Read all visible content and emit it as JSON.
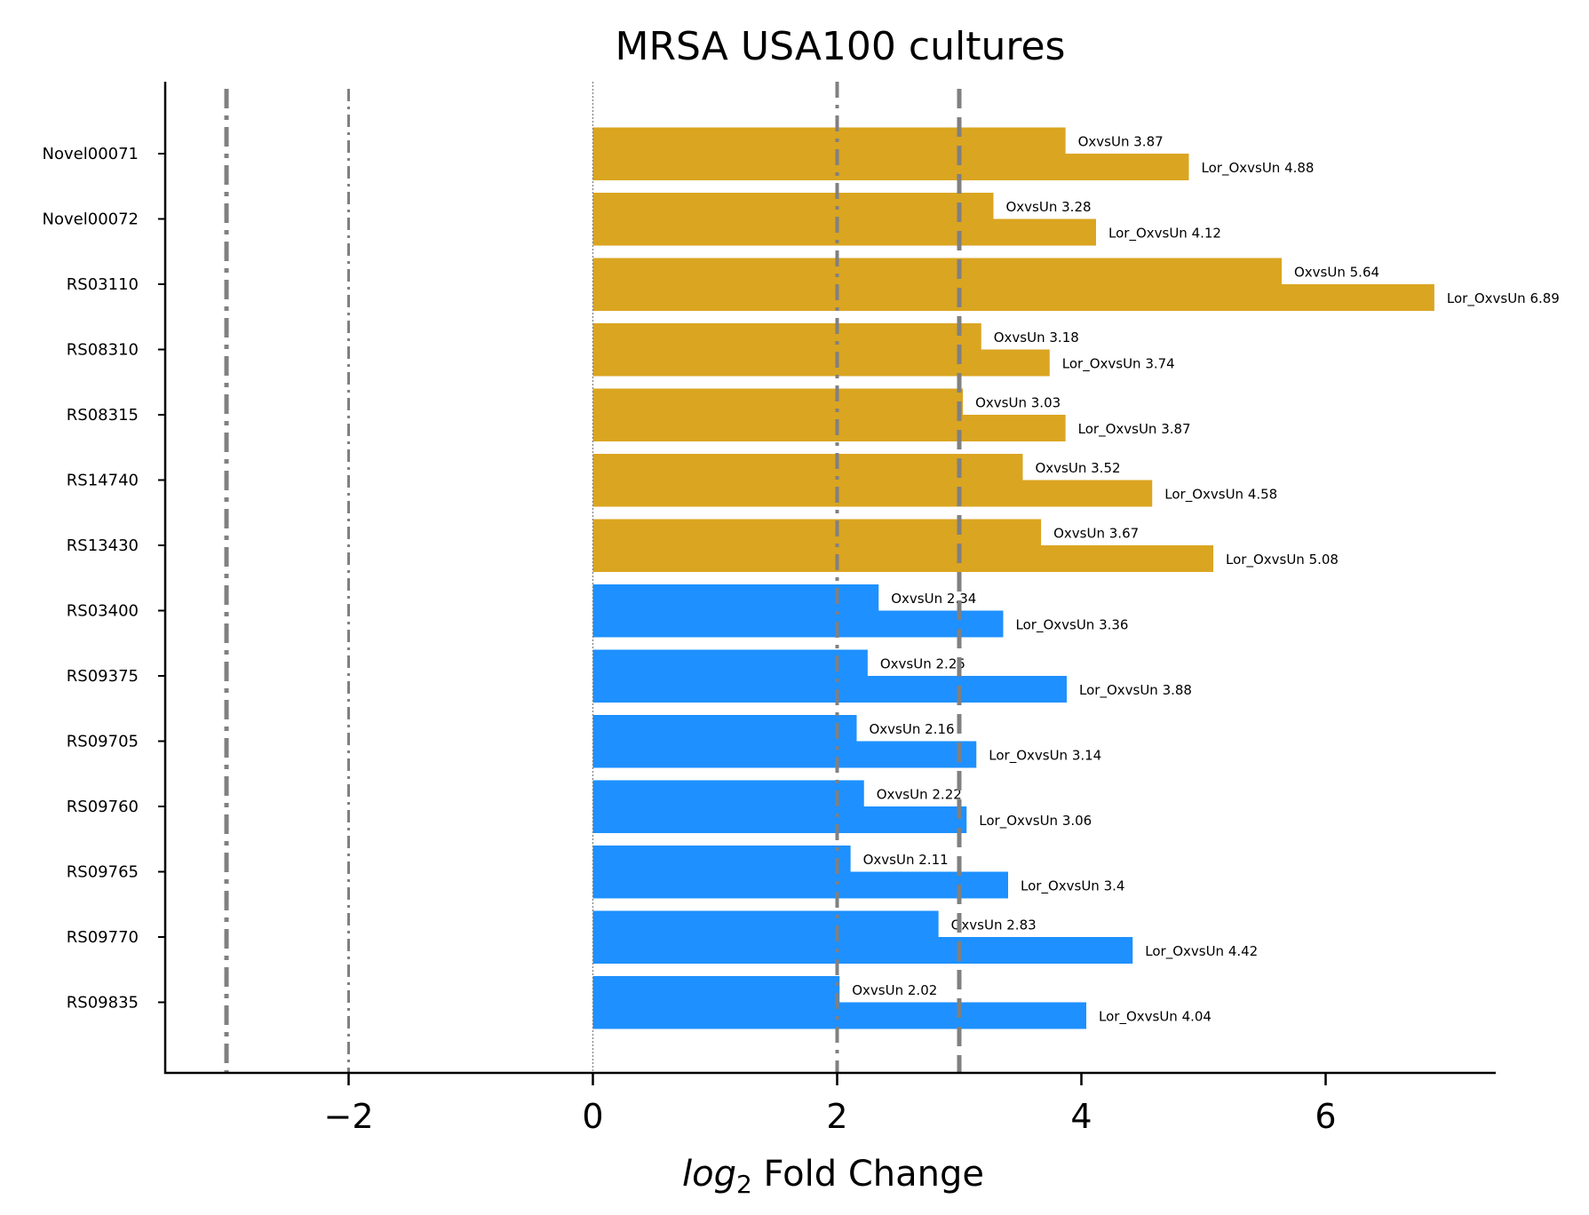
{
  "chart_data": {
    "type": "bar",
    "orientation": "horizontal",
    "title": "MRSA USA100 cultures",
    "xlabel_math": "log",
    "xlabel_sub": "2",
    "xlabel_rest": " Fold Change",
    "xlim": [
      -3.5,
      7.4
    ],
    "xticks": [
      -2,
      0,
      2,
      4,
      6
    ],
    "xtick_labels": [
      "−2",
      "0",
      "2",
      "4",
      "6"
    ],
    "categories": [
      "Novel00071",
      "Novel00072",
      "RS03110",
      "RS08310",
      "RS08315",
      "RS14740",
      "RS13430",
      "RS03400",
      "RS09375",
      "RS09705",
      "RS09760",
      "RS09765",
      "RS09770",
      "RS09835"
    ],
    "group_colors": [
      "#daa520",
      "#daa520",
      "#daa520",
      "#daa520",
      "#daa520",
      "#daa520",
      "#daa520",
      "#1e90ff",
      "#1e90ff",
      "#1e90ff",
      "#1e90ff",
      "#1e90ff",
      "#1e90ff",
      "#1e90ff"
    ],
    "series": [
      {
        "label_prefix": "OxvsUn",
        "values": [
          3.87,
          3.28,
          5.64,
          3.18,
          3.03,
          3.52,
          3.67,
          2.34,
          2.25,
          2.16,
          2.22,
          2.11,
          2.83,
          2.02
        ]
      },
      {
        "label_prefix": "Lor_OxvsUn",
        "values": [
          4.88,
          4.12,
          6.89,
          3.74,
          3.87,
          4.58,
          5.08,
          3.36,
          3.88,
          3.14,
          3.06,
          3.4,
          4.42,
          4.04
        ]
      }
    ],
    "reference_lines": [
      {
        "x": -3,
        "style": "dashdot-thick",
        "color": "#808080"
      },
      {
        "x": -2,
        "style": "dashdot-thin",
        "color": "#808080"
      },
      {
        "x": 0,
        "style": "dotted",
        "color": "#808080"
      },
      {
        "x": 2,
        "style": "dashdot-medium",
        "color": "#808080"
      },
      {
        "x": 3,
        "style": "dashed-thick",
        "color": "#808080"
      }
    ],
    "grid": false,
    "legend": "none"
  }
}
